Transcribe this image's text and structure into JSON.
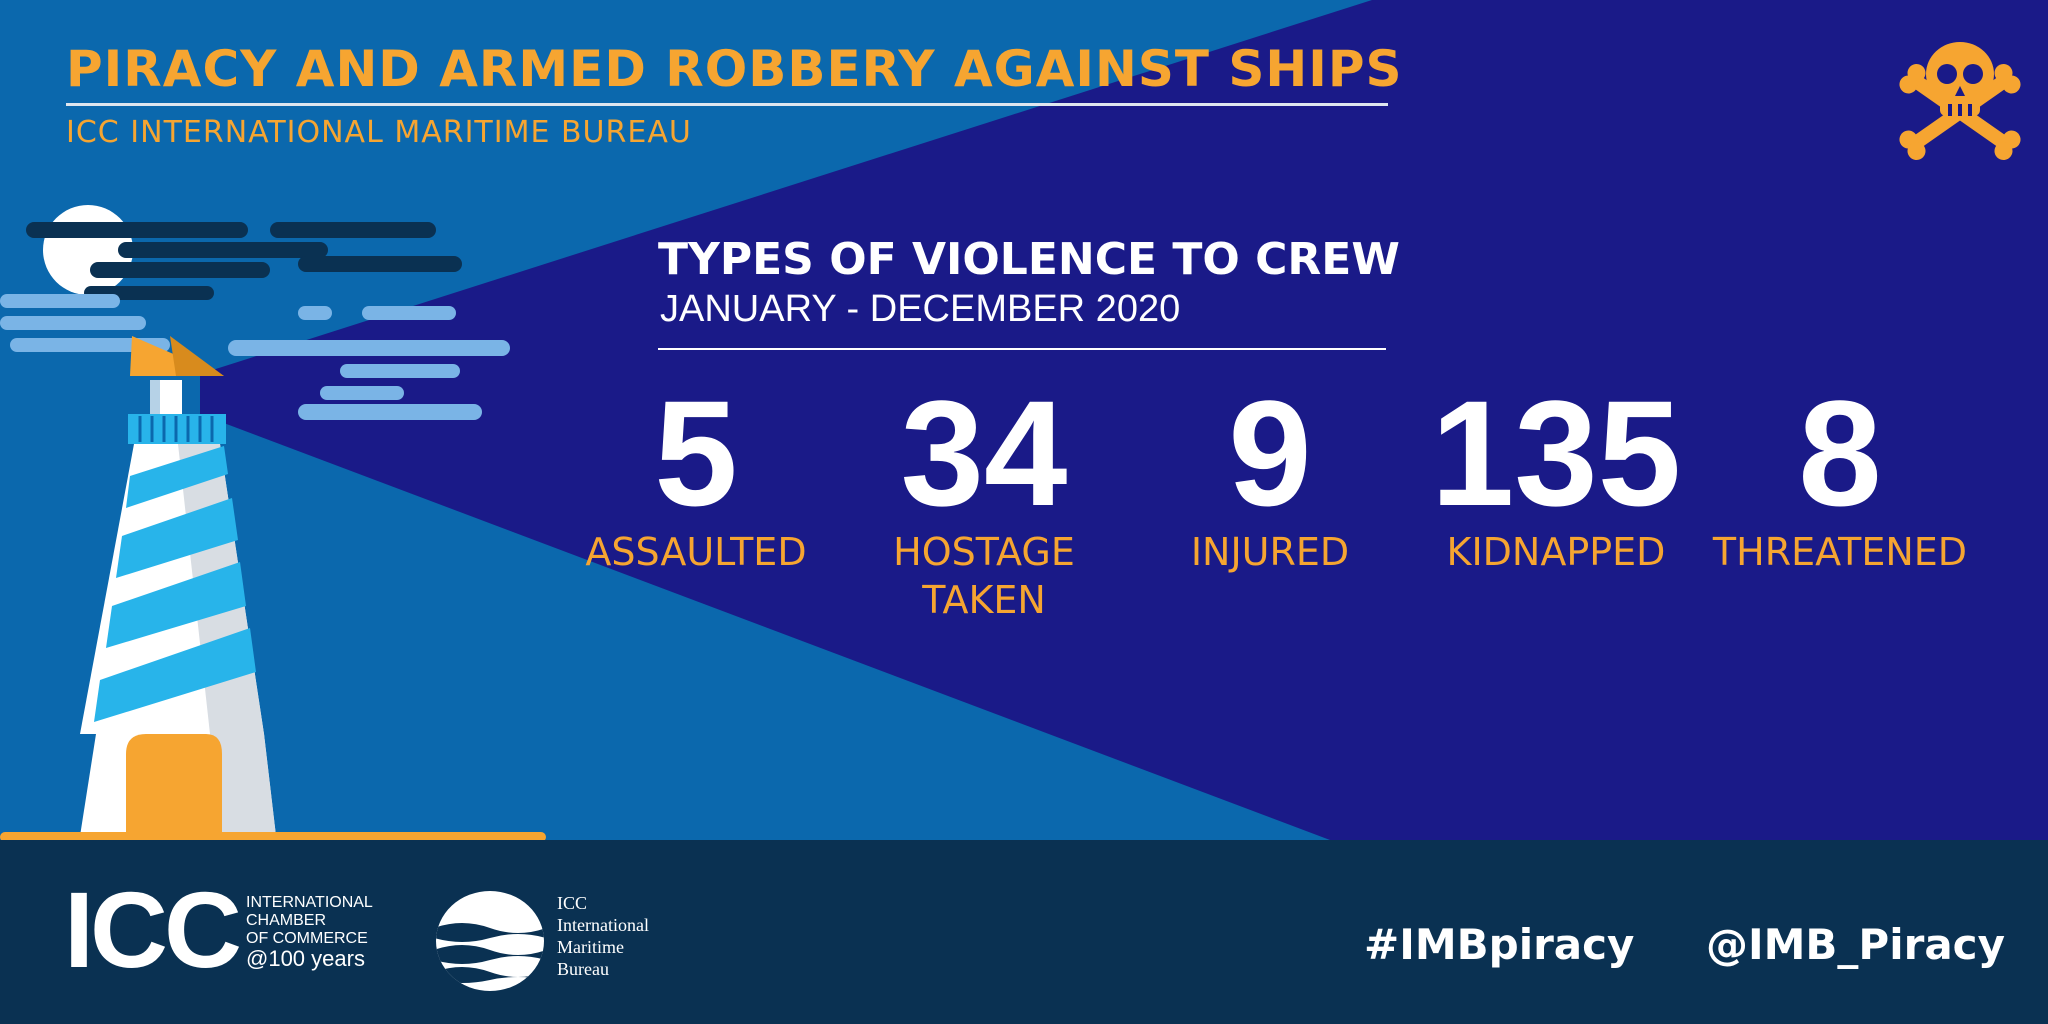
{
  "header": {
    "title": "PIRACY AND ARMED ROBBERY AGAINST SHIPS",
    "subtitle": "ICC INTERNATIONAL MARITIME BUREAU"
  },
  "section": {
    "title": "TYPES OF VIOLENCE TO CREW",
    "period": "JANUARY - DECEMBER 2020"
  },
  "stats": [
    {
      "value": "5",
      "label": "ASSAULTED"
    },
    {
      "value": "34",
      "label": "HOSTAGE\nTAKEN"
    },
    {
      "value": "9",
      "label": "INJURED"
    },
    {
      "value": "135",
      "label": "KIDNAPPED"
    },
    {
      "value": "8",
      "label": "THREATENED"
    }
  ],
  "footer": {
    "icc_word": "ICC",
    "icc_full": "INTERNATIONAL\nCHAMBER\nOF COMMERCE",
    "icc_anniversary": "@100 years",
    "imb_name": "ICC\nInternational\nMaritime\nBureau",
    "hashtag": "#IMBpiracy",
    "twitter": "@IMB_Piracy"
  },
  "icons": {
    "skull": "skull-crossbones-icon",
    "lighthouse": "lighthouse-illustration",
    "imb_logo": "imb-waves-logo",
    "icc_logo": "icc-logo"
  },
  "colors": {
    "accent": "#f6a531",
    "dark_navy": "#1a1a88",
    "mid_blue": "#0b68ad",
    "footer": "#0a3152",
    "text": "#ffffff",
    "light_blue": "#28b4ea"
  }
}
